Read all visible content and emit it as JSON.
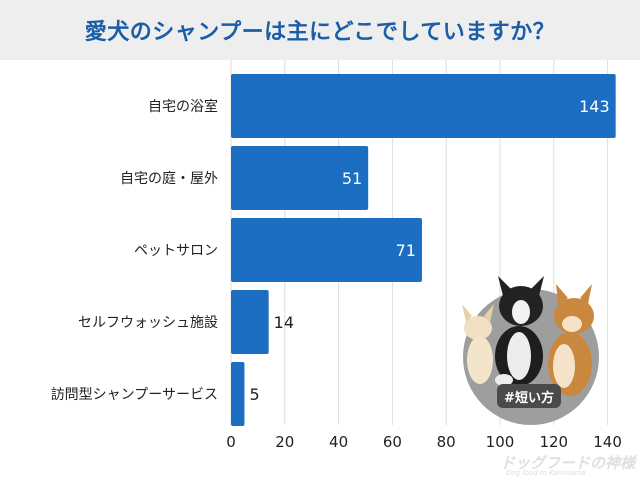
{
  "title": "愛犬のシャンプーは主にどこでしていますか？",
  "badge_label": "#短い方",
  "logo": {
    "main": "ドッグフードの神様",
    "sub": "Dog food to Kamisama"
  },
  "colors": {
    "bar": "#1b6ec2",
    "title": "#1a5ea8",
    "grid": "#dddddd",
    "title_bg": "#eeeeee"
  },
  "icons": [
    "dogs-photo-icon"
  ],
  "chart_data": {
    "type": "bar",
    "orientation": "horizontal",
    "title": "愛犬のシャンプーは主にどこでしていますか？",
    "categories": [
      "自宅の浴室",
      "自宅の庭・屋外",
      "ペットサロン",
      "セルフウォッシュ施設",
      "訪問型シャンプーサービス"
    ],
    "values": [
      143,
      51,
      71,
      14,
      5
    ],
    "xticks": [
      0,
      20,
      40,
      60,
      80,
      100,
      120,
      140
    ],
    "xlim": [
      0,
      145
    ],
    "grid": true,
    "legend": "none"
  }
}
